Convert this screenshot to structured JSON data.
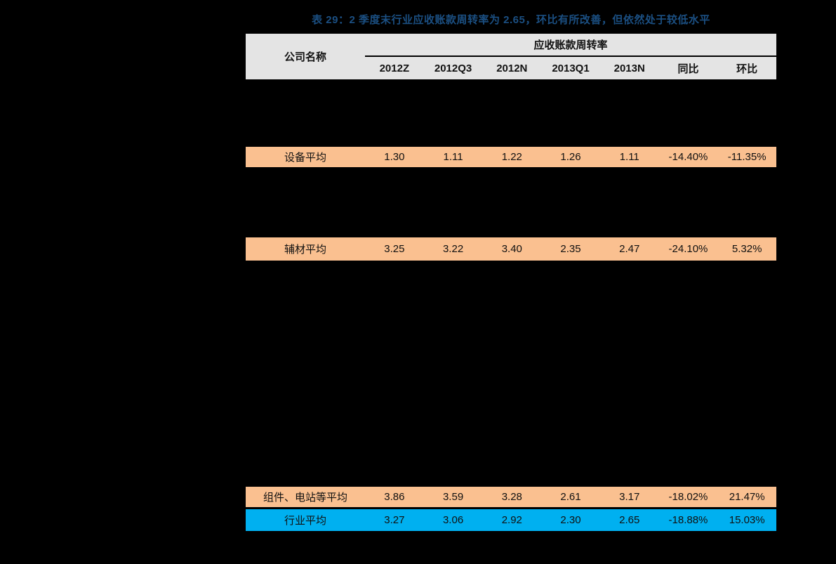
{
  "title": {
    "text": "表 29：2 季度末行业应收账款周转率为 2.65，环比有所改善，但依然处于较低水平"
  },
  "colors": {
    "orange": "#FAC090",
    "blue": "#00B0F0",
    "header_bg": "#E4E4E4",
    "title_color": "#1B4F82",
    "text_color": "#111111",
    "canvas_bg": "#000000"
  },
  "table": {
    "company_header": "公司名称",
    "group_header": "应收账款周转率",
    "columns": [
      "2012Z",
      "2012Q3",
      "2012N",
      "2013Q1",
      "2013N",
      "同比",
      "环比"
    ],
    "rows": [
      {
        "name": "设备平均",
        "highlight": "orange",
        "values": [
          "1.30",
          "1.11",
          "1.22",
          "1.26",
          "1.11",
          "-14.40%",
          "-11.35%"
        ]
      },
      {
        "name": "辅材平均",
        "highlight": "orange",
        "values": [
          "3.25",
          "3.22",
          "3.40",
          "2.35",
          "2.47",
          "-24.10%",
          "5.32%"
        ]
      },
      {
        "name": "组件、电站等平均",
        "highlight": "orange",
        "values": [
          "3.86",
          "3.59",
          "3.28",
          "2.61",
          "3.17",
          "-18.02%",
          "21.47%"
        ]
      },
      {
        "name": "行业平均",
        "highlight": "blue",
        "values": [
          "3.27",
          "3.06",
          "2.92",
          "2.30",
          "2.65",
          "-18.88%",
          "15.03%"
        ]
      }
    ]
  }
}
